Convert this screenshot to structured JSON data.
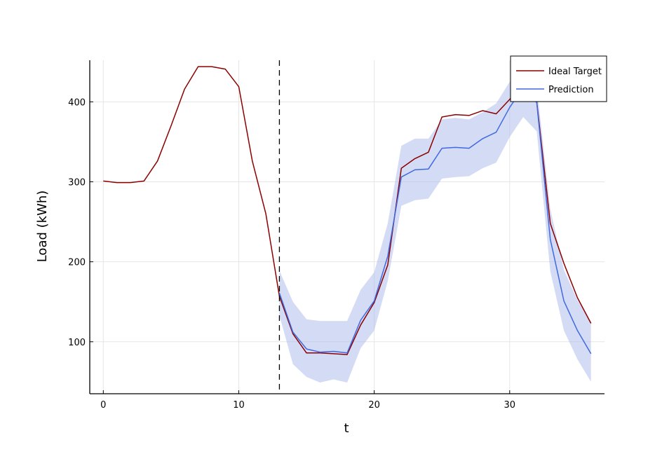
{
  "chart_data": {
    "type": "line",
    "title": "",
    "xlabel": "t",
    "ylabel": "Load (kWh)",
    "xlim": [
      -1,
      37
    ],
    "ylim": [
      35,
      452
    ],
    "xticks": [
      0,
      10,
      20,
      30
    ],
    "yticks": [
      100,
      200,
      300,
      400
    ],
    "grid": true,
    "legend_position": "top-right",
    "vline": {
      "x": 13,
      "style": "dashed",
      "color": "#000000"
    },
    "series": [
      {
        "name": "Ideal Target",
        "color": "#8b0000",
        "x": [
          0,
          1,
          2,
          3,
          4,
          5,
          6,
          7,
          8,
          9,
          10,
          11,
          12,
          13,
          14,
          15,
          16,
          17,
          18,
          19,
          20,
          21,
          22,
          23,
          24,
          25,
          26,
          27,
          28,
          29,
          30,
          31,
          32,
          33,
          34,
          35,
          36
        ],
        "y": [
          301,
          299,
          299,
          301,
          326,
          370,
          416,
          444,
          444,
          441,
          419,
          326,
          260,
          157,
          110,
          86,
          86,
          85,
          84,
          121,
          149,
          196,
          317,
          329,
          337,
          381,
          384,
          383,
          389,
          385,
          403,
          425,
          400,
          248,
          198,
          155,
          123
        ]
      },
      {
        "name": "Prediction",
        "color": "#4169e1",
        "x": [
          13,
          14,
          15,
          16,
          17,
          18,
          19,
          20,
          21,
          22,
          23,
          24,
          25,
          26,
          27,
          28,
          29,
          30,
          31,
          32,
          33,
          34,
          35,
          36
        ],
        "y": [
          161,
          112,
          91,
          87,
          88,
          86,
          127,
          151,
          207,
          306,
          315,
          316,
          342,
          343,
          342,
          354,
          362,
          393,
          418,
          399,
          228,
          151,
          114,
          85
        ]
      }
    ],
    "confidence_band": {
      "series": "Prediction",
      "color": "#aab8ea",
      "x": [
        13,
        14,
        15,
        16,
        17,
        18,
        19,
        20,
        21,
        22,
        23,
        24,
        25,
        26,
        27,
        28,
        29,
        30,
        31,
        32,
        33,
        34,
        35,
        36
      ],
      "lower": [
        133,
        72,
        56,
        49,
        53,
        49,
        92,
        114,
        176,
        270,
        277,
        279,
        304,
        306,
        307,
        317,
        324,
        356,
        381,
        363,
        188,
        114,
        78,
        50
      ],
      "upper": [
        189,
        150,
        128,
        126,
        126,
        126,
        165,
        187,
        248,
        345,
        354,
        354,
        378,
        380,
        378,
        387,
        398,
        425,
        445,
        420,
        266,
        190,
        152,
        125
      ]
    },
    "legend": [
      "Ideal Target",
      "Prediction"
    ]
  }
}
